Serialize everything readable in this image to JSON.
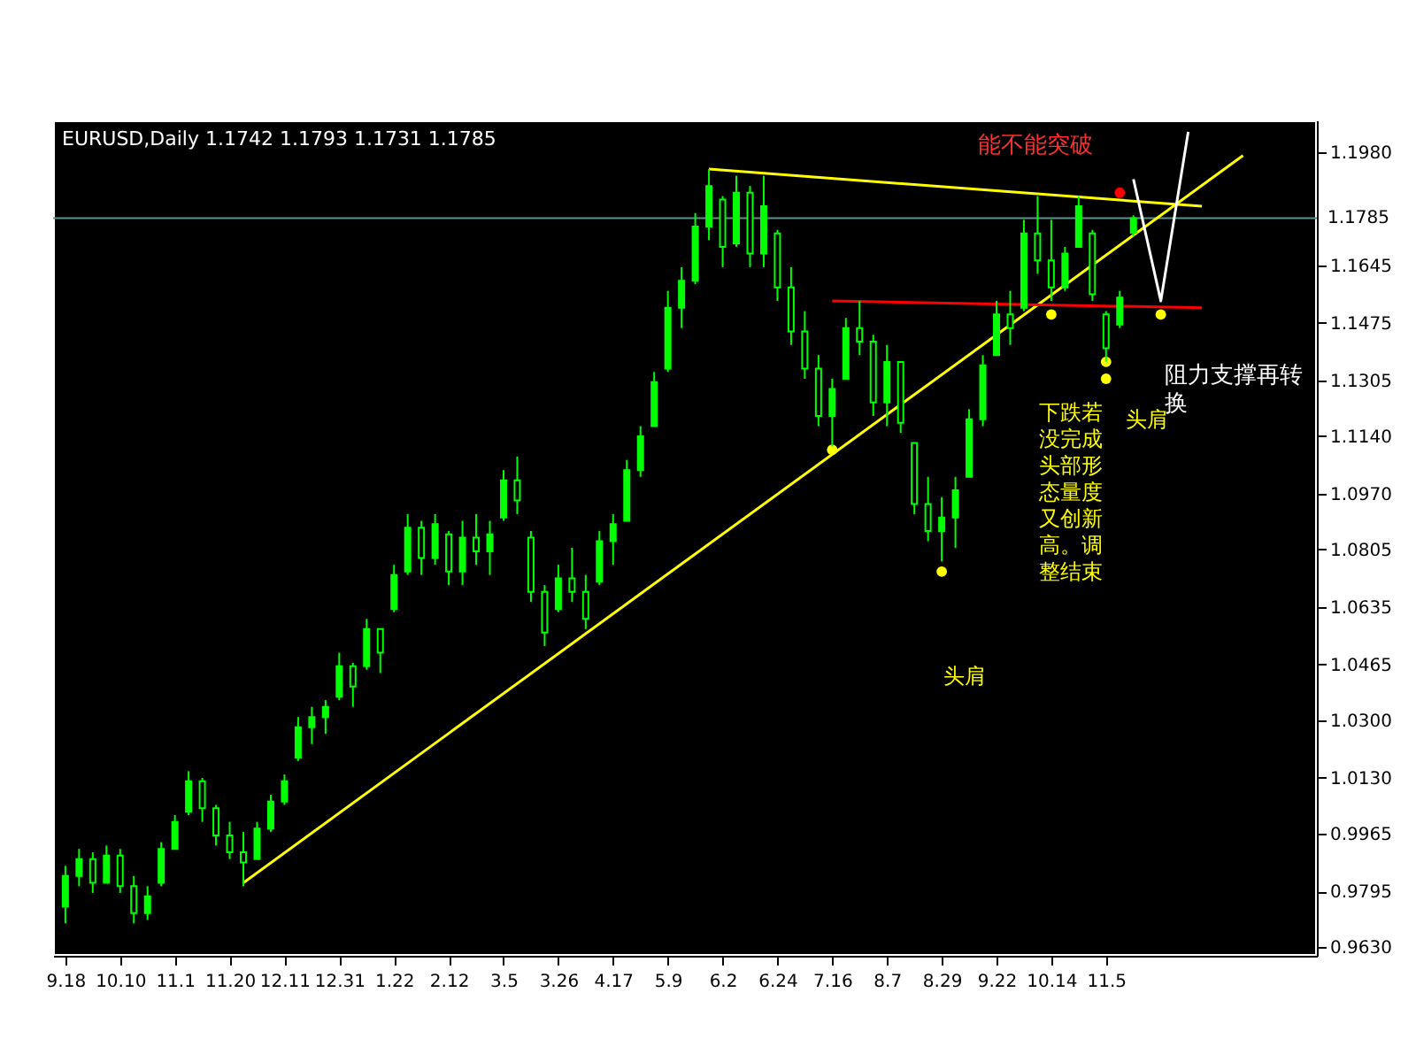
{
  "chart_data": {
    "type": "candlestick",
    "title": "EURUSD,Daily  1.1742 1.1793 1.1731 1.1785",
    "categories": [
      "9.18",
      null,
      null,
      null,
      "10.10",
      null,
      null,
      null,
      "11.1",
      null,
      null,
      null,
      "11.20",
      null,
      null,
      null,
      "12.11",
      null,
      null,
      null,
      "12.31",
      null,
      null,
      null,
      "1.22",
      null,
      null,
      null,
      "2.12",
      null,
      null,
      null,
      "3.5",
      null,
      null,
      null,
      "3.26",
      null,
      null,
      null,
      "4.17",
      null,
      null,
      null,
      "5.9",
      null,
      null,
      null,
      "6.2",
      null,
      null,
      null,
      "6.24",
      null,
      null,
      null,
      "7.16",
      null,
      null,
      null,
      "8.7",
      null,
      null,
      null,
      "8.29",
      null,
      null,
      null,
      "9.22",
      null,
      null,
      null,
      "10.14",
      null,
      null,
      null,
      "11.5",
      null,
      null,
      null,
      null,
      null,
      null,
      null,
      null,
      null,
      null
    ],
    "ylim": [
      0.9604,
      1.2074
    ],
    "yticks": [
      {
        "value": 0.963,
        "label": "0.9630"
      },
      0.9795,
      0.9965,
      {
        "value": 1.013,
        "label": "1.0130"
      },
      {
        "value": 1.03,
        "label": "1.0300"
      },
      1.0465,
      1.0635,
      1.0805,
      {
        "value": 1.097,
        "label": "1.0970"
      },
      {
        "value": 1.114,
        "label": "1.1140"
      },
      1.1305,
      1.1475,
      1.1645,
      {
        "value": 1.198,
        "label": "1.1980"
      }
    ],
    "grid": false,
    "series": [
      {
        "color": "#00ff00",
        "ohlc": [
          [
            0.975,
            0.987,
            0.97,
            0.984
          ],
          [
            0.984,
            0.992,
            0.981,
            0.989
          ],
          [
            0.989,
            0.991,
            0.979,
            0.982
          ],
          [
            0.982,
            0.993,
            0.982,
            0.99
          ],
          [
            0.99,
            0.992,
            0.979,
            0.981
          ],
          [
            0.981,
            0.984,
            0.97,
            0.973
          ],
          [
            0.973,
            0.981,
            0.971,
            0.978
          ],
          [
            0.982,
            0.994,
            0.981,
            0.992
          ],
          [
            0.992,
            1.002,
            0.992,
            1.0
          ],
          [
            1.003,
            1.015,
            1.002,
            1.012
          ],
          [
            1.012,
            1.013,
            1.0,
            1.004
          ],
          [
            1.004,
            1.005,
            0.993,
            0.996
          ],
          [
            0.996,
            1.0,
            0.989,
            0.991
          ],
          [
            0.991,
            0.997,
            0.981,
            0.988
          ],
          [
            0.989,
            1.0,
            0.989,
            0.998
          ],
          [
            0.998,
            1.008,
            0.997,
            1.006
          ],
          [
            1.006,
            1.014,
            1.005,
            1.012
          ],
          [
            1.019,
            1.031,
            1.018,
            1.028
          ],
          [
            1.028,
            1.034,
            1.023,
            1.031
          ],
          [
            1.031,
            1.036,
            1.026,
            1.034
          ],
          [
            1.037,
            1.05,
            1.036,
            1.046
          ],
          [
            1.046,
            1.047,
            1.034,
            1.04
          ],
          [
            1.046,
            1.06,
            1.045,
            1.057
          ],
          [
            1.057,
            1.057,
            1.044,
            1.05
          ],
          [
            1.063,
            1.076,
            1.062,
            1.073
          ],
          [
            1.074,
            1.091,
            1.073,
            1.087
          ],
          [
            1.087,
            1.089,
            1.073,
            1.078
          ],
          [
            1.078,
            1.091,
            1.076,
            1.088
          ],
          [
            1.085,
            1.086,
            1.07,
            1.074
          ],
          [
            1.074,
            1.089,
            1.07,
            1.084
          ],
          [
            1.084,
            1.091,
            1.076,
            1.08
          ],
          [
            1.08,
            1.089,
            1.073,
            1.085
          ],
          [
            1.09,
            1.104,
            1.089,
            1.101
          ],
          [
            1.101,
            1.108,
            1.091,
            1.095
          ],
          [
            1.084,
            1.086,
            1.065,
            1.068
          ],
          [
            1.068,
            1.07,
            1.052,
            1.056
          ],
          [
            1.063,
            1.076,
            1.062,
            1.072
          ],
          [
            1.072,
            1.081,
            1.065,
            1.068
          ],
          [
            1.068,
            1.073,
            1.057,
            1.06
          ],
          [
            1.071,
            1.086,
            1.07,
            1.083
          ],
          [
            1.083,
            1.091,
            1.076,
            1.088
          ],
          [
            1.089,
            1.107,
            1.089,
            1.104
          ],
          [
            1.104,
            1.117,
            1.102,
            1.114
          ],
          [
            1.117,
            1.133,
            1.117,
            1.13
          ],
          [
            1.134,
            1.157,
            1.133,
            1.152
          ],
          [
            1.152,
            1.164,
            1.146,
            1.16
          ],
          [
            1.16,
            1.18,
            1.159,
            1.176
          ],
          [
            1.176,
            1.193,
            1.172,
            1.188
          ],
          [
            1.184,
            1.185,
            1.164,
            1.17
          ],
          [
            1.171,
            1.191,
            1.17,
            1.186
          ],
          [
            1.186,
            1.188,
            1.164,
            1.168
          ],
          [
            1.168,
            1.191,
            1.164,
            1.182
          ],
          [
            1.174,
            1.175,
            1.154,
            1.158
          ],
          [
            1.158,
            1.164,
            1.141,
            1.145
          ],
          [
            1.145,
            1.151,
            1.131,
            1.134
          ],
          [
            1.134,
            1.138,
            1.117,
            1.12
          ],
          [
            1.12,
            1.131,
            1.111,
            1.128
          ],
          [
            1.131,
            1.149,
            1.131,
            1.146
          ],
          [
            1.146,
            1.154,
            1.138,
            1.142
          ],
          [
            1.142,
            1.144,
            1.12,
            1.124
          ],
          [
            1.124,
            1.141,
            1.117,
            1.136
          ],
          [
            1.136,
            1.136,
            1.115,
            1.118
          ],
          [
            1.112,
            1.112,
            1.091,
            1.094
          ],
          [
            1.094,
            1.102,
            1.083,
            1.086
          ],
          [
            1.086,
            1.096,
            1.077,
            1.09
          ],
          [
            1.09,
            1.102,
            1.081,
            1.098
          ],
          [
            1.102,
            1.122,
            1.102,
            1.119
          ],
          [
            1.119,
            1.138,
            1.117,
            1.135
          ],
          [
            1.138,
            1.154,
            1.138,
            1.15
          ],
          [
            1.15,
            1.157,
            1.141,
            1.146
          ],
          [
            1.152,
            1.178,
            1.151,
            1.174
          ],
          [
            1.174,
            1.185,
            1.162,
            1.166
          ],
          [
            1.166,
            1.178,
            1.154,
            1.158
          ],
          [
            1.158,
            1.17,
            1.157,
            1.168
          ],
          [
            1.17,
            1.185,
            1.17,
            1.182
          ],
          [
            1.174,
            1.175,
            1.154,
            1.156
          ],
          [
            1.15,
            1.151,
            1.136,
            1.14
          ],
          [
            1.147,
            1.157,
            1.146,
            1.155
          ],
          [
            1.1742,
            1.1793,
            1.1731,
            1.1785
          ],
          null,
          null,
          null,
          null,
          null,
          null,
          null,
          null
        ]
      },
      {
        "type": "line",
        "color": "#ffff00",
        "values": [
          null,
          null,
          null,
          null,
          null,
          null,
          null,
          null,
          null,
          null,
          null,
          null,
          null,
          0.982,
          null,
          null,
          null,
          null,
          null,
          null,
          null,
          null,
          null,
          null,
          null,
          null,
          null,
          null,
          null,
          null,
          null,
          null,
          null,
          null,
          null,
          null,
          null,
          null,
          null,
          null,
          null,
          null,
          null,
          null,
          null,
          null,
          null,
          null,
          null,
          null,
          null,
          null,
          null,
          null,
          null,
          null,
          null,
          null,
          null,
          null,
          null,
          null,
          null,
          null,
          null,
          null,
          null,
          null,
          null,
          null,
          null,
          null,
          null,
          null,
          null,
          null,
          null,
          null,
          null,
          null,
          null,
          null,
          null,
          null,
          null,
          null,
          1.197
        ]
      },
      {
        "type": "line",
        "color": "#ffff00",
        "values": [
          null,
          null,
          null,
          null,
          null,
          null,
          null,
          null,
          null,
          null,
          null,
          null,
          null,
          null,
          null,
          null,
          null,
          null,
          null,
          null,
          null,
          null,
          null,
          null,
          null,
          null,
          null,
          null,
          null,
          null,
          null,
          null,
          null,
          null,
          null,
          null,
          null,
          null,
          null,
          null,
          null,
          null,
          null,
          null,
          null,
          null,
          null,
          1.193,
          null,
          null,
          null,
          null,
          null,
          null,
          null,
          null,
          null,
          null,
          null,
          null,
          null,
          null,
          null,
          null,
          null,
          null,
          null,
          null,
          null,
          null,
          null,
          null,
          null,
          null,
          null,
          null,
          null,
          null,
          null,
          null,
          null,
          null,
          null,
          1.182,
          null,
          null,
          null
        ]
      },
      {
        "type": "line",
        "color": "#ff0000",
        "values": [
          null,
          null,
          null,
          null,
          null,
          null,
          null,
          null,
          null,
          null,
          null,
          null,
          null,
          null,
          null,
          null,
          null,
          null,
          null,
          null,
          null,
          null,
          null,
          null,
          null,
          null,
          null,
          null,
          null,
          null,
          null,
          null,
          null,
          null,
          null,
          null,
          null,
          null,
          null,
          null,
          null,
          null,
          null,
          null,
          null,
          null,
          null,
          null,
          null,
          null,
          null,
          null,
          null,
          null,
          null,
          null,
          1.154,
          null,
          null,
          null,
          null,
          null,
          null,
          null,
          null,
          null,
          null,
          null,
          null,
          null,
          null,
          null,
          null,
          null,
          null,
          null,
          null,
          null,
          null,
          null,
          null,
          null,
          null,
          1.152,
          null,
          null,
          null
        ]
      },
      {
        "type": "line",
        "color": "#ffffff",
        "values": [
          null,
          null,
          null,
          null,
          null,
          null,
          null,
          null,
          null,
          null,
          null,
          null,
          null,
          null,
          null,
          null,
          null,
          null,
          null,
          null,
          null,
          null,
          null,
          null,
          null,
          null,
          null,
          null,
          null,
          null,
          null,
          null,
          null,
          null,
          null,
          null,
          null,
          null,
          null,
          null,
          null,
          null,
          null,
          null,
          null,
          null,
          null,
          null,
          null,
          null,
          null,
          null,
          null,
          null,
          null,
          null,
          null,
          null,
          null,
          null,
          null,
          null,
          null,
          null,
          null,
          null,
          null,
          null,
          null,
          null,
          null,
          null,
          null,
          null,
          null,
          null,
          null,
          null,
          1.19,
          null,
          1.154,
          null,
          1.204,
          null,
          null,
          null,
          null
        ]
      },
      {
        "type": "scatter",
        "marker": "circle",
        "color": "#ffff00",
        "values": [
          null,
          null,
          null,
          null,
          null,
          null,
          null,
          null,
          null,
          null,
          null,
          null,
          null,
          null,
          null,
          null,
          null,
          null,
          null,
          null,
          null,
          null,
          null,
          null,
          null,
          null,
          null,
          null,
          null,
          null,
          null,
          null,
          null,
          null,
          null,
          null,
          null,
          null,
          null,
          null,
          null,
          null,
          null,
          null,
          null,
          null,
          null,
          null,
          null,
          null,
          null,
          null,
          null,
          null,
          null,
          null,
          null,
          null,
          null,
          null,
          null,
          null,
          null,
          null,
          null,
          null,
          null,
          null,
          null,
          null,
          null,
          null,
          1.15,
          null,
          null,
          null,
          1.131,
          null,
          null,
          null,
          1.15,
          null,
          null,
          null,
          null,
          null,
          null
        ]
      },
      {
        "type": "scatter",
        "marker": "circle",
        "color": "#ffff00",
        "values": [
          null,
          null,
          null,
          null,
          null,
          null,
          null,
          null,
          null,
          null,
          null,
          null,
          null,
          null,
          null,
          null,
          null,
          null,
          null,
          null,
          null,
          null,
          null,
          null,
          null,
          null,
          null,
          null,
          null,
          null,
          null,
          null,
          null,
          null,
          null,
          null,
          null,
          null,
          null,
          null,
          null,
          null,
          null,
          null,
          null,
          null,
          null,
          null,
          null,
          null,
          null,
          null,
          null,
          null,
          null,
          null,
          1.11,
          null,
          null,
          null,
          null,
          null,
          null,
          null,
          1.074,
          null,
          null,
          null,
          null,
          null,
          null,
          null,
          null,
          null,
          null,
          null,
          1.136,
          null,
          null,
          null,
          null,
          null,
          null,
          null,
          null,
          null,
          null
        ]
      },
      {
        "type": "scatter",
        "marker": "circle",
        "color": "#ff0000",
        "values": [
          null,
          null,
          null,
          null,
          null,
          null,
          null,
          null,
          null,
          null,
          null,
          null,
          null,
          null,
          null,
          null,
          null,
          null,
          null,
          null,
          null,
          null,
          null,
          null,
          null,
          null,
          null,
          null,
          null,
          null,
          null,
          null,
          null,
          null,
          null,
          null,
          null,
          null,
          null,
          null,
          null,
          null,
          null,
          null,
          null,
          null,
          null,
          null,
          null,
          null,
          null,
          null,
          null,
          null,
          null,
          null,
          null,
          null,
          null,
          null,
          null,
          null,
          null,
          null,
          null,
          null,
          null,
          null,
          null,
          null,
          null,
          null,
          null,
          null,
          null,
          null,
          null,
          1.186,
          null,
          null,
          null,
          null,
          null,
          null,
          null,
          null,
          null
        ]
      }
    ],
    "ref_lines": [
      {
        "axis": "y",
        "value": 1.1785,
        "label": "1.1785",
        "color": "#5f8f8f"
      }
    ],
    "annotations": [
      "能不能突破",
      "阻力支撑再转换",
      "下跌若没完成头部形态量度又创新高。调整结束",
      "头肩",
      "头肩"
    ]
  }
}
